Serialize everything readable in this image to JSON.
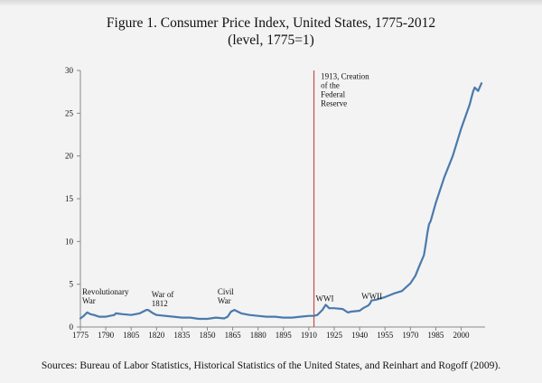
{
  "title": "Figure 1. Consumer Price Index, United States, 1775-2012",
  "subtitle": "(level, 1775=1)",
  "sources": "Sources: Bureau of Labor Statistics, Historical Statistics of the United States, and Reinhart and Rogoff (2009).",
  "colors": {
    "line": "#4a7aac",
    "marker_line": "#c94b4b",
    "axis": "#888888"
  },
  "chart_data": {
    "type": "line",
    "title": "Figure 1. Consumer Price Index, United States, 1775-2012",
    "subtitle": "(level, 1775=1)",
    "xlabel": "",
    "ylabel": "",
    "xlim": [
      1775,
      2012
    ],
    "ylim": [
      0,
      30
    ],
    "x_ticks": [
      1775,
      1790,
      1805,
      1820,
      1835,
      1850,
      1865,
      1880,
      1895,
      1910,
      1925,
      1940,
      1955,
      1970,
      1985,
      2000
    ],
    "y_ticks": [
      0,
      5,
      10,
      15,
      20,
      25,
      30
    ],
    "grid": false,
    "legend": "none",
    "series": [
      {
        "x": [
          1775,
          1777,
          1779,
          1781,
          1783,
          1786,
          1790,
          1795,
          1796,
          1800,
          1805,
          1810,
          1814,
          1815,
          1818,
          1820,
          1830,
          1835,
          1840,
          1845,
          1850,
          1855,
          1860,
          1862,
          1864,
          1866,
          1870,
          1875,
          1880,
          1885,
          1890,
          1895,
          1900,
          1905,
          1910,
          1913,
          1915,
          1918,
          1920,
          1921,
          1922,
          1925,
          1930,
          1933,
          1935,
          1940,
          1942,
          1945,
          1946,
          1947,
          1950,
          1955,
          1960,
          1965,
          1970,
          1973,
          1975,
          1978,
          1979,
          1980,
          1981,
          1982,
          1985,
          1990,
          1995,
          2000,
          2005,
          2007,
          2008,
          2010,
          2012
        ],
        "y": [
          1.0,
          1.3,
          1.7,
          1.5,
          1.4,
          1.2,
          1.2,
          1.4,
          1.6,
          1.5,
          1.4,
          1.6,
          2.0,
          2.0,
          1.6,
          1.4,
          1.2,
          1.1,
          1.1,
          0.95,
          0.95,
          1.1,
          1.0,
          1.2,
          1.8,
          2.0,
          1.6,
          1.4,
          1.3,
          1.2,
          1.2,
          1.1,
          1.1,
          1.2,
          1.3,
          1.3,
          1.4,
          2.0,
          2.6,
          2.4,
          2.2,
          2.2,
          2.1,
          1.7,
          1.8,
          1.9,
          2.2,
          2.5,
          2.7,
          3.1,
          3.2,
          3.5,
          3.9,
          4.2,
          5.1,
          6.0,
          7.0,
          8.4,
          9.6,
          11.0,
          12.0,
          12.4,
          14.5,
          17.5,
          20.0,
          23.2,
          26.0,
          27.5,
          28.0,
          27.6,
          28.5
        ]
      }
    ],
    "annotations": [
      {
        "lines": [
          "Revolutionary",
          "War"
        ],
        "x": 1775,
        "y": 3.8
      },
      {
        "lines": [
          "War of",
          "1812"
        ],
        "x": 1816,
        "y": 3.5
      },
      {
        "lines": [
          "Civil",
          "War"
        ],
        "x": 1855,
        "y": 3.8
      },
      {
        "lines": [
          "WWI"
        ],
        "x": 1913,
        "y": 3.0
      },
      {
        "lines": [
          "WWII"
        ],
        "x": 1940,
        "y": 3.3
      },
      {
        "lines": [
          "1913, Creation",
          "of the",
          "Federal",
          "Reserve"
        ],
        "x": 1916,
        "y": 29.0
      }
    ],
    "vertical_line": {
      "x": 1913
    }
  }
}
